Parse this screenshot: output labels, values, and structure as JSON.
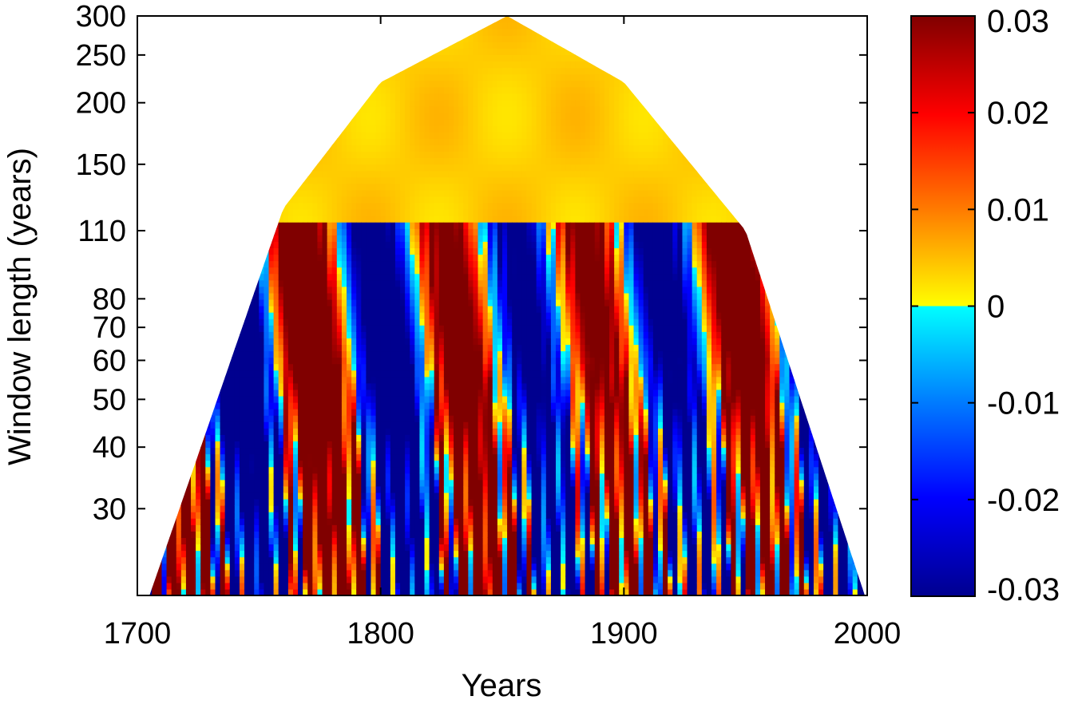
{
  "chart_data": {
    "type": "heatmap",
    "title": "",
    "xlabel": "Years",
    "ylabel": "Window length (years)",
    "xlim": [
      1700,
      2000
    ],
    "ylim": [
      20,
      300
    ],
    "yscale": "log",
    "x_ticks": [
      1700,
      1800,
      1900,
      2000
    ],
    "x_tick_labels": [
      "1700",
      "1800",
      "1900",
      "2000"
    ],
    "y_ticks": [
      30,
      40,
      50,
      60,
      70,
      80,
      110,
      150,
      200,
      250,
      300
    ],
    "y_tick_labels": [
      "30",
      "40",
      "50",
      "60",
      "70",
      "80",
      "110",
      "150",
      "200",
      "250",
      "300"
    ],
    "colorbar": {
      "min": -0.03,
      "max": 0.03,
      "ticks": [
        -0.03,
        -0.02,
        -0.01,
        0,
        0.01,
        0.02,
        0.03
      ],
      "tick_labels": [
        "-0.03",
        "-0.02",
        "-0.01",
        "0",
        "0.01",
        "0.02",
        "0.03"
      ],
      "colors_negative": [
        "#00008f",
        "#0000ff",
        "#0080ff",
        "#00ffff"
      ],
      "colors_positive": [
        "#ffff00",
        "#ff8000",
        "#ff0000",
        "#800000"
      ]
    },
    "cone_of_influence": {
      "center_year": 1852,
      "years": [
        1705,
        1760,
        1800,
        1852,
        1900,
        1950,
        1999
      ],
      "window_length": [
        20,
        122,
        220,
        300,
        220,
        110,
        20
      ]
    },
    "grid": false,
    "legend": "colorbar-right"
  }
}
